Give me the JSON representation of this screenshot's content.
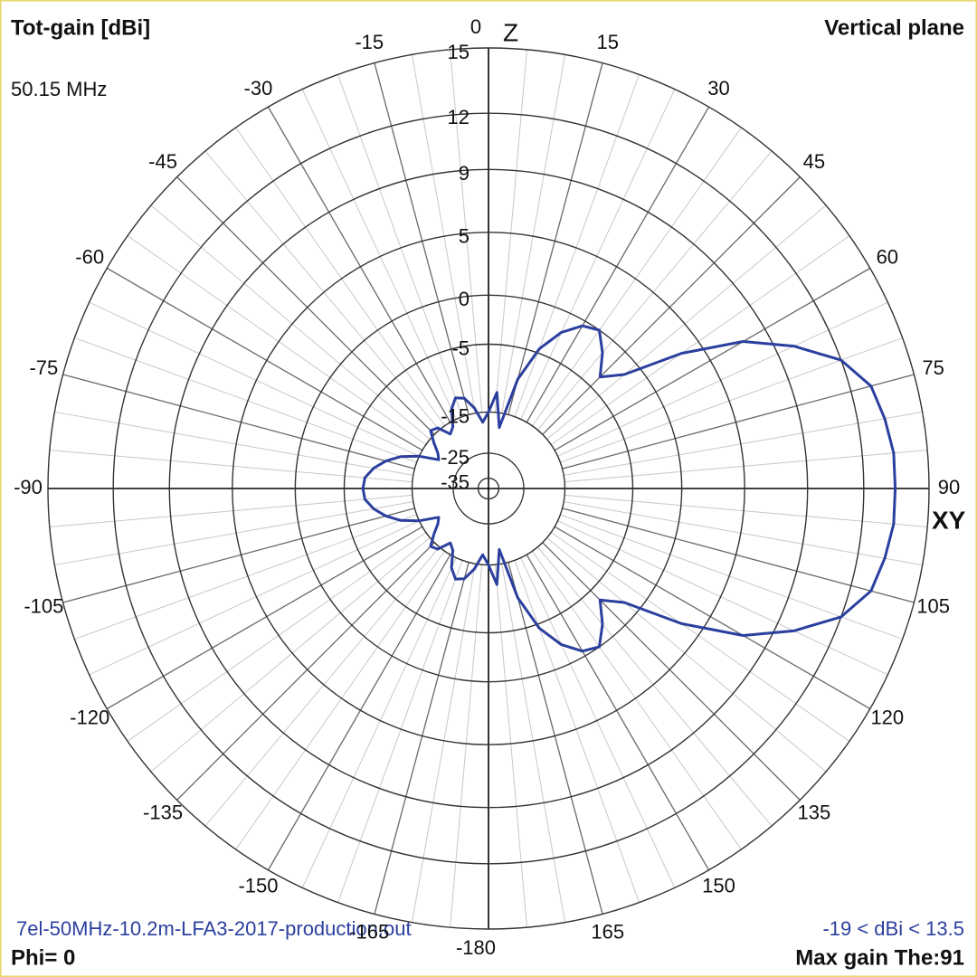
{
  "chart_data": {
    "type": "polar",
    "title": "Tot-gain [dBi]",
    "subtitle": "Vertical plane",
    "frequency": "50.15 MHz",
    "z_label": "Z",
    "xy_label": "XY",
    "file": "7el-50MHz-10.2m-LFA3-2017-production.out",
    "range_label": "-19 < dBi < 13.5",
    "phi": "Phi= 0",
    "max_gain": "Max gain The:91",
    "color": "#2b3f9e",
    "rlim": [
      -35,
      15
    ],
    "rticks": [
      15,
      12,
      9,
      5,
      0,
      -5,
      -15,
      -25,
      -35
    ],
    "thetaticks": [
      0,
      15,
      30,
      45,
      60,
      75,
      90,
      105,
      120,
      135,
      150,
      165,
      -180,
      -165,
      -150,
      -135,
      -120,
      -105,
      -90,
      -75,
      -60,
      -45,
      -30,
      -15
    ],
    "theta": [
      -180,
      -175,
      -170,
      -165,
      -160,
      -155,
      -150,
      -145,
      -140,
      -135,
      -130,
      -125,
      -120,
      -115,
      -110,
      -105,
      -100,
      -95,
      -90,
      -85,
      -80,
      -75,
      -70,
      -65,
      -60,
      -55,
      -50,
      -45,
      -40,
      -35,
      -30,
      -25,
      -20,
      -15,
      -10,
      -5,
      0,
      5,
      10,
      15,
      20,
      25,
      30,
      35,
      40,
      45,
      50,
      55,
      60,
      65,
      70,
      75,
      80,
      85,
      90,
      95,
      100,
      105,
      110,
      115,
      120,
      125,
      130,
      135,
      140,
      145,
      150,
      155,
      160,
      165,
      170,
      175,
      180
    ],
    "values": [
      -15,
      -17,
      -14,
      -12,
      -11.5,
      -13,
      -16,
      -17,
      -14.5,
      -14,
      -16,
      -18,
      -19,
      -15,
      -12,
      -10,
      -8.5,
      -7.5,
      -7.3,
      -7.5,
      -8.5,
      -10,
      -12,
      -15,
      -19,
      -18,
      -16,
      -14,
      -14.5,
      -17,
      -16,
      -13,
      -11.5,
      -12,
      -14,
      -17,
      -15,
      -11.5,
      -18,
      -9,
      -4.5,
      -2,
      -0.5,
      0,
      -1.5,
      -3.5,
      -1.5,
      3.5,
      7.5,
      10,
      12,
      13,
      13.3,
      13.5,
      13.5,
      13.5,
      13.3,
      13,
      12,
      10,
      7.5,
      3.5,
      -1.5,
      -3.5,
      -1.5,
      0,
      -0.5,
      -2,
      -4.5,
      -9,
      -18,
      -11.5,
      -15
    ]
  }
}
